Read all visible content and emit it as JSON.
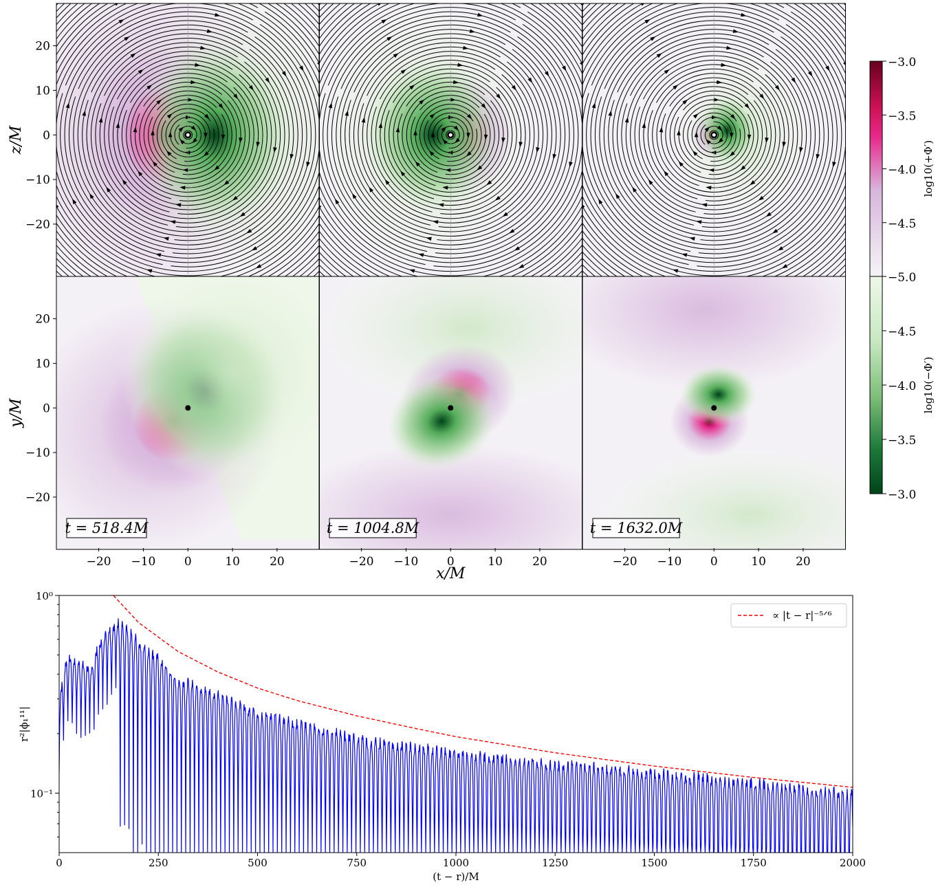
{
  "colors": {
    "positive_dark": "#67001f",
    "positive_mid": "#e7298a",
    "positive_light": "#d8b6dd",
    "background": "#f4f1f6",
    "negative_light": "#eef7e9",
    "negative_mid": "#55ad5b",
    "negative_dark": "#00441b",
    "streamline": "#000000",
    "series_blue": "#0000ff",
    "fit_red": "#ff0000"
  },
  "panels": {
    "top_ylabel": "z/M",
    "mid_ylabel": "y/M",
    "xlabel": "x/M",
    "spatial_ticks": [
      "−20",
      "−10",
      "0",
      "10",
      "20"
    ],
    "spatial_tick_values": [
      -20,
      -10,
      0,
      10,
      20
    ],
    "time_labels": [
      "t = 518.4M",
      "t = 1004.8M",
      "t = 1632.0M"
    ]
  },
  "colorbar": {
    "top_label": "log10(+Φ′)",
    "bottom_label": "log10(−Φ′)",
    "top_ticks": [
      "−3.0",
      "−3.5",
      "−4.0",
      "−4.5",
      "−5.0"
    ],
    "bottom_ticks": [
      "−5.0",
      "−4.5",
      "−4.0",
      "−3.5",
      "−3.0"
    ]
  },
  "chart_data": {
    "type": "line",
    "xlabel": "(t − r)/M",
    "ylabel": "r²|ϕ₁¹¹|",
    "xlim": [
      0,
      2000
    ],
    "ylim": [
      0.05,
      1.0
    ],
    "yscale": "log",
    "x_ticks": [
      "0",
      "250",
      "500",
      "750",
      "1000",
      "1250",
      "1500",
      "1750",
      "2000"
    ],
    "x_tick_values": [
      0,
      250,
      500,
      750,
      1000,
      1250,
      1500,
      1750,
      2000
    ],
    "y_ticks": [
      "10⁰",
      "10⁻¹"
    ],
    "y_tick_values": [
      1.0,
      0.1
    ],
    "legend": {
      "placement": "top-right"
    },
    "series": [
      {
        "style": "solid-blue",
        "oscillation_period": 11,
        "envelope": {
          "x": [
            0,
            20,
            50,
            80,
            100,
            120,
            150,
            200,
            300,
            500,
            750,
            1000,
            1250,
            1500,
            1750,
            2000
          ],
          "y": [
            0.3,
            0.52,
            0.48,
            0.45,
            0.6,
            0.7,
            0.78,
            0.62,
            0.4,
            0.27,
            0.2,
            0.17,
            0.15,
            0.135,
            0.12,
            0.105
          ]
        }
      },
      {
        "name": "∝ |t − r|⁻⁵ᐟ⁶",
        "style": "dashed-red",
        "x": [
          137,
          200,
          300,
          400,
          500,
          600,
          750,
          900,
          1000,
          1250,
          1500,
          1750,
          2000
        ],
        "y": [
          1.0,
          0.73,
          0.52,
          0.41,
          0.34,
          0.294,
          0.246,
          0.212,
          0.193,
          0.16,
          0.137,
          0.12,
          0.107
        ]
      }
    ]
  }
}
